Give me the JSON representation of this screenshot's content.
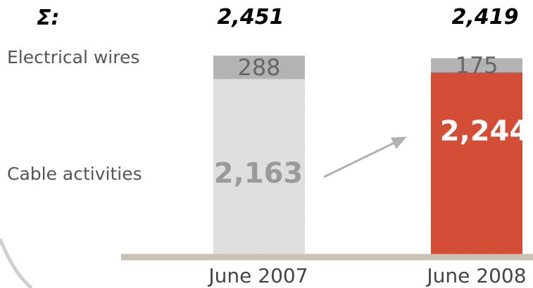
{
  "chart_data": {
    "type": "bar",
    "stacked": true,
    "categories": [
      "June 2007",
      "June 2008"
    ],
    "series": [
      {
        "name": "Cable activities",
        "values": [
          2163,
          2244
        ]
      },
      {
        "name": "Electrical wires",
        "values": [
          288,
          175
        ]
      }
    ],
    "totals_label": "Σ:",
    "totals": [
      "2,451",
      "2,419"
    ],
    "segment_labels": {
      "cable": [
        "2,163",
        "2,244"
      ],
      "electrical": [
        "288",
        "175"
      ]
    },
    "colors": {
      "june_2007_bar": "#d9d9d9",
      "june_2008_bar": "#d9533a",
      "top_segment": "#b3b3b3",
      "baseline": "#c8c2b6",
      "arrow": "#b0b0b0"
    },
    "ylim": [
      0,
      2600
    ],
    "legend": "left, inline row labels",
    "grid": false
  }
}
